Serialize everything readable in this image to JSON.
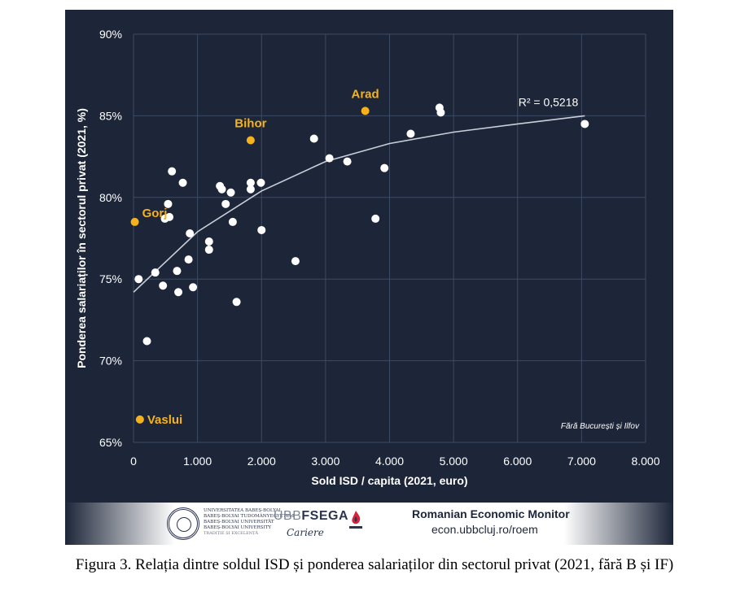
{
  "colors": {
    "panel": "#1d2639",
    "grid": "#3c4a63",
    "text": "#ffffff",
    "point": "#ffffff",
    "highlight": "#f5b21a",
    "trend": "#c9ced8"
  },
  "chart_data": {
    "type": "scatter",
    "xlabel": "Sold ISD / capita (2021, euro)",
    "ylabel": "Ponderea salariaților în sectorul privat (2021, %)",
    "xlim": [
      0,
      8000
    ],
    "ylim": [
      65,
      90
    ],
    "x_ticks": [
      0,
      1000,
      2000,
      3000,
      4000,
      5000,
      6000,
      7000,
      8000
    ],
    "x_tick_labels": [
      "0",
      "1.000",
      "2.000",
      "3.000",
      "4.000",
      "5.000",
      "6.000",
      "7.000",
      "8.000"
    ],
    "y_ticks": [
      65,
      70,
      75,
      80,
      85,
      90
    ],
    "y_tick_labels": [
      "65%",
      "70%",
      "75%",
      "80%",
      "85%",
      "90%"
    ],
    "grid": true,
    "note": "Fără București și Ilfov",
    "trendline": {
      "type": "logarithmic",
      "label": "R² = 0,5218",
      "points": [
        [
          0,
          74.2
        ],
        [
          1000,
          77.9
        ],
        [
          2000,
          80.4
        ],
        [
          3000,
          82.2
        ],
        [
          4000,
          83.3
        ],
        [
          5000,
          84.0
        ],
        [
          6000,
          84.5
        ],
        [
          7050,
          85.0
        ]
      ]
    },
    "highlighted": [
      {
        "label": "Arad",
        "x": 3620,
        "y": 85.3
      },
      {
        "label": "Bihor",
        "x": 1830,
        "y": 83.5
      },
      {
        "label": "Gorj",
        "x": 20,
        "y": 78.5
      },
      {
        "label": "Vaslui",
        "x": 100,
        "y": 66.4
      }
    ],
    "points": [
      [
        4780,
        85.5
      ],
      [
        4800,
        85.2
      ],
      [
        7050,
        84.5
      ],
      [
        4330,
        83.9
      ],
      [
        2820,
        83.6
      ],
      [
        3060,
        82.4
      ],
      [
        3340,
        82.2
      ],
      [
        3920,
        81.8
      ],
      [
        600,
        81.6
      ],
      [
        770,
        80.9
      ],
      [
        1830,
        80.9
      ],
      [
        1990,
        80.9
      ],
      [
        1350,
        80.7
      ],
      [
        1380,
        80.5
      ],
      [
        1830,
        80.5
      ],
      [
        1520,
        80.3
      ],
      [
        540,
        79.6
      ],
      [
        1440,
        79.6
      ],
      [
        560,
        78.8
      ],
      [
        490,
        78.7
      ],
      [
        1550,
        78.5
      ],
      [
        3780,
        78.7
      ],
      [
        880,
        77.8
      ],
      [
        2000,
        78.0
      ],
      [
        1180,
        77.3
      ],
      [
        1180,
        76.8
      ],
      [
        860,
        76.2
      ],
      [
        2530,
        76.1
      ],
      [
        680,
        75.5
      ],
      [
        340,
        75.4
      ],
      [
        80,
        75.0
      ],
      [
        460,
        74.6
      ],
      [
        930,
        74.5
      ],
      [
        700,
        74.2
      ],
      [
        1610,
        73.6
      ],
      [
        210,
        71.2
      ]
    ]
  },
  "footer": {
    "ubb_lines": [
      "UNIVERSITATEA BABEȘ-BOLYAI",
      "BABEȘ-BOLYAI TUDOMÁNYEGYETEM",
      "BABEȘ-BOLYAI UNIVERSITÄT",
      "BABEȘ-BOLYAI UNIVERSITY"
    ],
    "ubb_motto": "TRADIȚIE ȘI EXCELENȚĂ",
    "fsega_prefix": "UBB",
    "fsega_name": "FSEGA",
    "fsega_signature": "Cariere",
    "monitor_title": "Romanian Economic Monitor",
    "monitor_url": "econ.ubbcluj.ro/roem"
  },
  "caption": "Figura 3. Relația dintre soldul ISD și ponderea salariaților din sectorul privat (2021, fără B și IF)"
}
